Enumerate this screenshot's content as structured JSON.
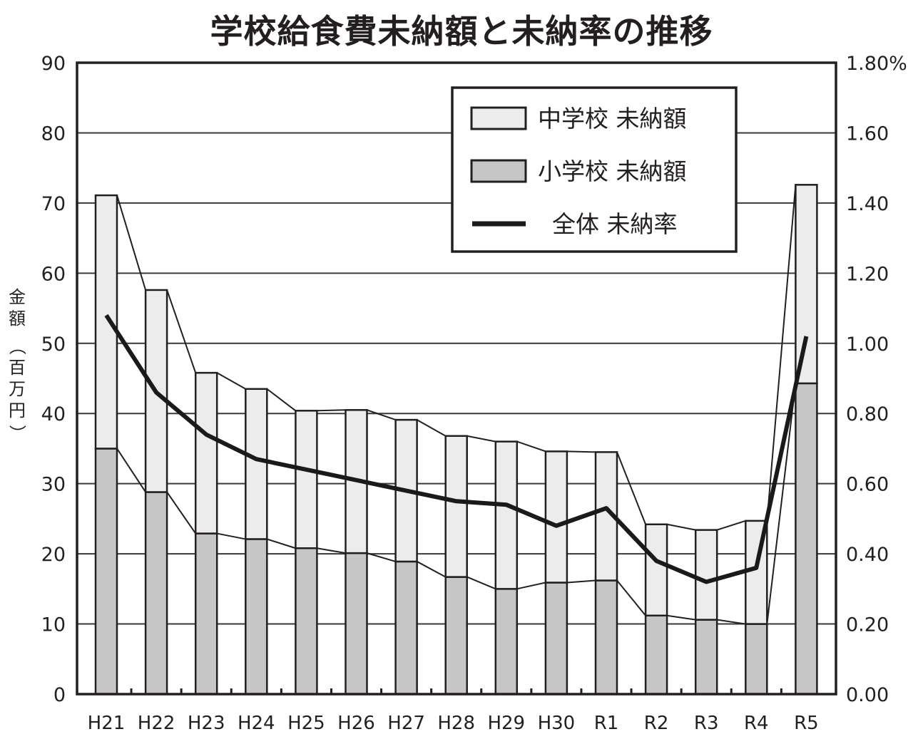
{
  "title": "学校給食費未納額と未納率の推移",
  "chart_data": {
    "type": "bar",
    "stacked": true,
    "title": "学校給食費未納額と未納率の推移",
    "xlabel": "",
    "ylabel": "金額（百万円）",
    "y2label": "%",
    "ylim": [
      0,
      90
    ],
    "y2lim": [
      0.0,
      1.8
    ],
    "yticks": [
      "0",
      "10",
      "20",
      "30",
      "40",
      "50",
      "60",
      "70",
      "80",
      "90"
    ],
    "y2ticks": [
      "0.00",
      "0.20",
      "0.40",
      "0.60",
      "0.80",
      "1.00",
      "1.20",
      "1.40",
      "1.60",
      "1.80%"
    ],
    "grid": true,
    "legend_position": "upper-right-inside",
    "categories": [
      "H21",
      "H22",
      "H23",
      "H24",
      "H25",
      "H26",
      "H27",
      "H28",
      "H29",
      "H30",
      "R1",
      "R2",
      "R3",
      "R4",
      "R5"
    ],
    "series": [
      {
        "name": "小学校 未納額",
        "type": "bar",
        "axis": "left",
        "color": "#c6c6c6",
        "values": [
          35.0,
          28.8,
          22.9,
          22.1,
          20.8,
          20.1,
          18.9,
          16.7,
          15.0,
          15.9,
          16.2,
          11.2,
          10.6,
          10.0,
          44.3
        ]
      },
      {
        "name": "中学校 未納額",
        "type": "bar",
        "axis": "left",
        "color": "#ececec",
        "values": [
          36.1,
          28.8,
          22.9,
          21.4,
          19.6,
          20.4,
          20.2,
          20.1,
          21.0,
          18.7,
          18.3,
          13.0,
          12.8,
          14.7,
          28.3
        ]
      },
      {
        "name": "全体 未納率",
        "type": "line",
        "axis": "right",
        "color": "#1a1a1a",
        "values": [
          1.08,
          0.86,
          0.74,
          0.67,
          0.64,
          0.61,
          0.58,
          0.55,
          0.54,
          0.48,
          0.53,
          0.38,
          0.32,
          0.36,
          1.02
        ]
      }
    ],
    "totals": [
      71.1,
      57.6,
      45.8,
      43.5,
      40.4,
      40.5,
      39.1,
      36.8,
      36.0,
      34.6,
      34.5,
      24.2,
      23.4,
      24.7,
      72.6
    ]
  },
  "legend": {
    "items": [
      {
        "label": "中学校 未納額",
        "swatch": "box",
        "color": "#ececec"
      },
      {
        "label": "小学校 未納額",
        "swatch": "box",
        "color": "#c6c6c6"
      },
      {
        "label": "全体 未納率",
        "swatch": "line",
        "color": "#1a1a1a"
      }
    ]
  },
  "axes": {
    "left_label_chars": [
      "金",
      "額",
      "（",
      "百",
      "万",
      "円",
      "）"
    ]
  }
}
